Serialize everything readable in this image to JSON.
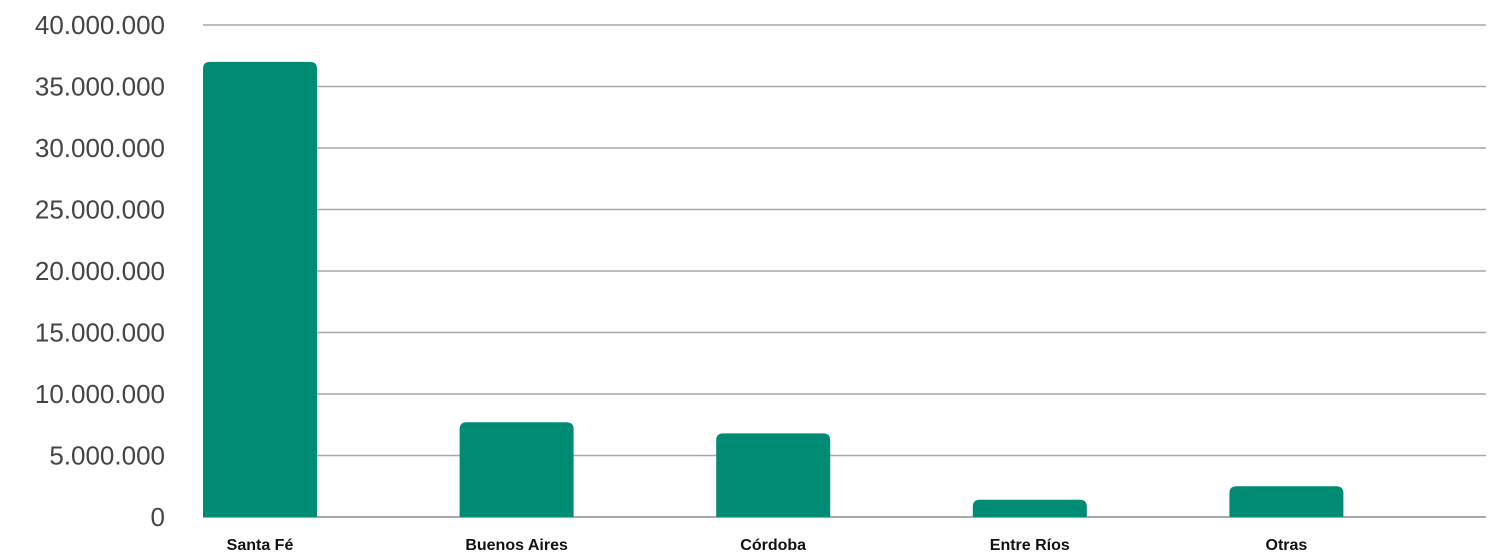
{
  "chart_data": {
    "type": "bar",
    "title": "",
    "xlabel": "",
    "ylabel": "",
    "categories": [
      "Santa Fé",
      "Buenos Aires",
      "Córdoba",
      "Entre Ríos",
      "Otras"
    ],
    "values": [
      37000000,
      7700000,
      6800000,
      1400000,
      2500000
    ],
    "ylim": [
      0,
      40000000
    ],
    "yticks": [
      0,
      5000000,
      10000000,
      15000000,
      20000000,
      25000000,
      30000000,
      35000000,
      40000000
    ],
    "ytick_labels": [
      "0",
      "5.000.000",
      "10.000.000",
      "15.000.000",
      "20.000.000",
      "25.000.000",
      "30.000.000",
      "35.000.000",
      "40.000.000"
    ],
    "grid": true,
    "legend": "none",
    "bar_color": "#008B74"
  }
}
